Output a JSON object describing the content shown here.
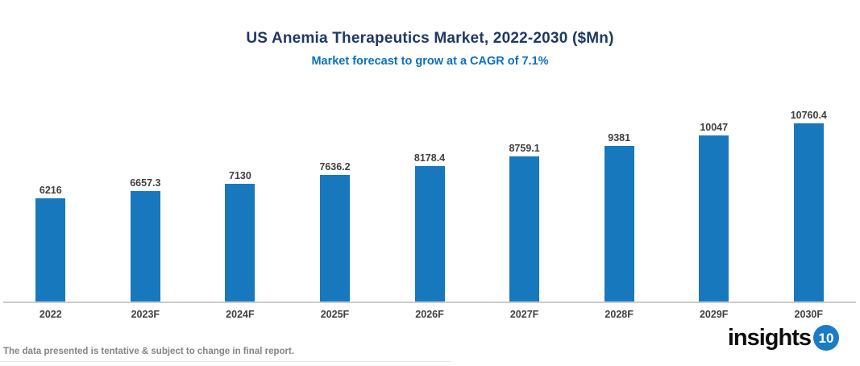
{
  "header": {
    "title": "US Anemia Therapeutics Market, 2022-2030 ($Mn)",
    "subtitle": "Market forecast to grow at a CAGR of 7.1%"
  },
  "footer": {
    "disclaimer": "The data presented is tentative & subject to change in final report."
  },
  "logo": {
    "text": "insights",
    "badge": "10"
  },
  "colors": {
    "bar": "#1878BE",
    "title": "#1F3864",
    "subtitle": "#0B70C0",
    "value_label": "#404040",
    "axis_label": "#404040",
    "axis_line": "#CCCCCC",
    "footer_text": "#848484",
    "logo_text": "#0D0D0D",
    "logo_badge": "#1B7CC4"
  },
  "chart_data": {
    "type": "bar",
    "title": "US Anemia Therapeutics Market, 2022-2030 ($Mn)",
    "subtitle": "Market forecast to grow at a CAGR of 7.1%",
    "categories": [
      "2022",
      "2023F",
      "2024F",
      "2025F",
      "2026F",
      "2027F",
      "2028F",
      "2029F",
      "2030F"
    ],
    "values": [
      6216,
      6657.3,
      7130,
      7636.2,
      8178.4,
      8759.1,
      9381,
      10047,
      10760.4
    ],
    "value_labels": [
      "6216",
      "6657.3",
      "7130",
      "7636.2",
      "8178.4",
      "8759.1",
      "9381",
      "10047",
      "10760.4"
    ],
    "xlabel": "",
    "ylabel": "",
    "ylim": [
      0,
      10760.4
    ],
    "grid": false,
    "legend": false,
    "y_axis_visible": false,
    "data_labels_position": "above-bar"
  }
}
